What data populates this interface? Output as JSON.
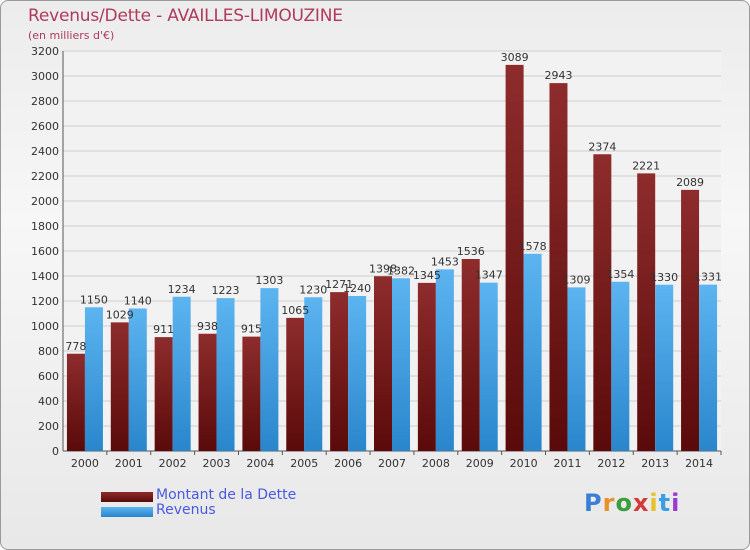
{
  "header": {
    "title": "Revenus/Dette - AVAILLES-LIMOUZINE",
    "subtitle": "(en milliers d'€)"
  },
  "legend": {
    "items": [
      {
        "label": "Montant de la Dette",
        "color": "#7a1a1a"
      },
      {
        "label": "Revenus",
        "color": "#3a9ee4"
      }
    ]
  },
  "logo": {
    "text": "Proxiti"
  },
  "chart_data": {
    "type": "bar",
    "categories": [
      "2000",
      "2001",
      "2002",
      "2003",
      "2004",
      "2005",
      "2006",
      "2007",
      "2008",
      "2009",
      "2010",
      "2011",
      "2012",
      "2013",
      "2014"
    ],
    "series": [
      {
        "name": "Montant de la Dette",
        "color": "#7a1a1a",
        "values": [
          778,
          1029,
          911,
          938,
          915,
          1065,
          1271,
          1398,
          1345,
          1536,
          3089,
          2943,
          2374,
          2221,
          2089
        ],
        "labels": [
          "778",
          "1029",
          "911",
          "938",
          "915",
          "1065",
          "1271",
          "1398",
          "1345",
          "1536",
          "3089",
          "2943",
          "2374",
          "2221",
          "2089"
        ]
      },
      {
        "name": "Revenus",
        "color": "#3a9ee4",
        "values": [
          1150,
          1140,
          1234,
          1223,
          1303,
          1230,
          1240,
          1382,
          1453,
          1347,
          1578,
          1309,
          1354,
          1330,
          1331
        ],
        "labels": [
          "1150",
          "1140",
          "1234",
          "1223",
          "1303",
          "1230",
          "1240",
          "1382",
          "1453",
          "1347",
          "1578",
          "1309",
          "1354",
          "1330",
          "1331"
        ]
      }
    ],
    "title": "Revenus/Dette - AVAILLES-LIMOUZINE",
    "ylabel": "(en milliers d'€)",
    "ylim": [
      0,
      3200
    ],
    "yticks": [
      0,
      200,
      400,
      600,
      800,
      1000,
      1200,
      1400,
      1600,
      1800,
      2000,
      2200,
      2400,
      2600,
      2800,
      3000,
      3200
    ],
    "grid": true,
    "legend_position": "bottom-left"
  }
}
